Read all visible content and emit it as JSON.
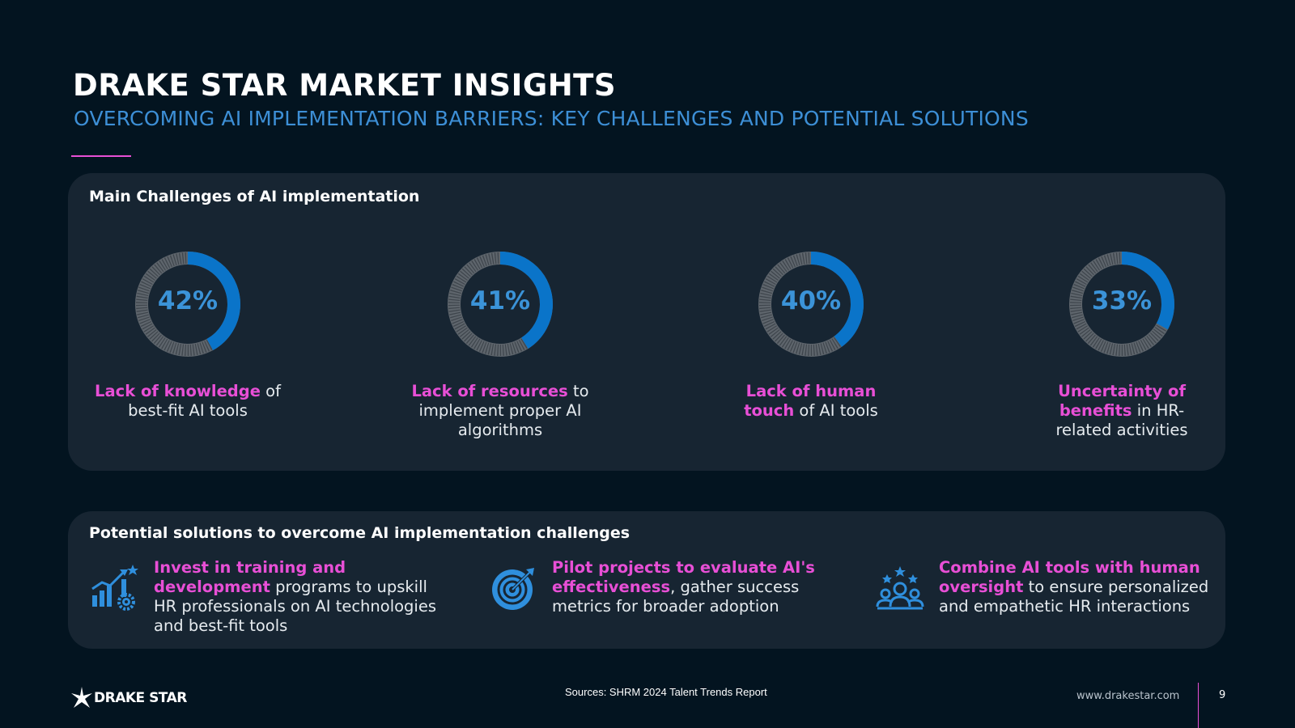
{
  "header": {
    "title": "DRAKE STAR MARKET INSIGHTS",
    "subtitle": "OVERCOMING AI IMPLEMENTATION BARRIERS: KEY CHALLENGES AND POTENTIAL SOLUTIONS"
  },
  "challenges": {
    "heading": "Main Challenges of AI implementation",
    "items": [
      {
        "percent_label": "42%",
        "percent": 42,
        "highlight": "Lack of knowledge",
        "rest": " of best-fit AI tools"
      },
      {
        "percent_label": "41%",
        "percent": 41,
        "highlight": "Lack of resources",
        "rest": " to implement proper AI algorithms"
      },
      {
        "percent_label": "40%",
        "percent": 40,
        "highlight": "Lack of human touch",
        "rest": " of AI tools"
      },
      {
        "percent_label": "33%",
        "percent": 33,
        "highlight": "Uncertainty of benefits",
        "rest": " in HR-related activities"
      }
    ]
  },
  "solutions": {
    "heading": "Potential solutions to overcome AI implementation challenges",
    "items": [
      {
        "icon": "growth-chart-gear-icon",
        "highlight": "Invest in training and development",
        "rest": " programs to upskill HR professionals on AI technologies and best-fit tools"
      },
      {
        "icon": "target-gear-icon",
        "highlight": "Pilot projects to evaluate AI's effectiveness",
        "rest": ", gather success metrics for broader adoption"
      },
      {
        "icon": "team-stars-icon",
        "highlight": "Combine AI tools with human oversight",
        "rest": " to ensure personalized and empathetic HR interactions"
      }
    ]
  },
  "footer": {
    "brand": "DRAKE STAR",
    "sources": "Sources: SHRM 2024 Talent Trends Report",
    "website": "www.drakestar.com",
    "page_number": "9"
  },
  "colors": {
    "background": "#031420",
    "panel": "#172532",
    "accent_pink": "#e84fd6",
    "accent_blue": "#0a74c9",
    "percent_text": "#3b93d8",
    "ring_track": "#5e656c"
  }
}
